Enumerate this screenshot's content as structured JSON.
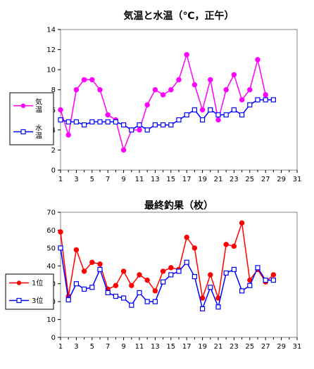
{
  "chart_data": [
    {
      "type": "line",
      "title": "気温と水温（℃，正午）",
      "xlabel": "",
      "ylabel": "",
      "xlim": [
        1,
        31
      ],
      "ylim": [
        0,
        14
      ],
      "x_ticks": [
        1,
        3,
        5,
        7,
        9,
        11,
        13,
        15,
        17,
        19,
        21,
        23,
        25,
        27,
        29,
        31
      ],
      "y_ticks": [
        0,
        2,
        4,
        6,
        8,
        10,
        12,
        14
      ],
      "grid": false,
      "legend_position": "left",
      "series": [
        {
          "name": "気温",
          "color": "#ff00ff",
          "marker": "circle-filled",
          "x": [
            1,
            2,
            3,
            4,
            5,
            6,
            7,
            8,
            9,
            10,
            11,
            12,
            13,
            14,
            15,
            16,
            17,
            18,
            19,
            20,
            21,
            22,
            23,
            24,
            25,
            26,
            27
          ],
          "y": [
            6,
            3.5,
            8,
            9,
            9,
            8,
            5.5,
            5,
            2,
            4,
            4,
            6.5,
            8,
            7.5,
            8,
            9,
            11.5,
            8.5,
            6,
            9,
            5,
            8,
            9.5,
            7,
            8,
            11,
            7.5
          ]
        },
        {
          "name": "水温",
          "color": "#0000ff",
          "marker": "square-open",
          "x": [
            1,
            2,
            3,
            4,
            5,
            6,
            7,
            8,
            9,
            10,
            11,
            12,
            13,
            14,
            15,
            16,
            17,
            18,
            19,
            20,
            21,
            22,
            23,
            24,
            25,
            26,
            27,
            28
          ],
          "y": [
            5,
            4.8,
            4.8,
            4.5,
            4.8,
            4.8,
            4.8,
            4.8,
            4.5,
            4,
            4.5,
            4,
            4.5,
            4.5,
            4.5,
            5,
            5.5,
            6,
            5,
            6,
            5.5,
            5.5,
            6,
            5.5,
            6.5,
            7,
            7,
            7
          ]
        }
      ]
    },
    {
      "type": "line",
      "title": "最終釣果（枚）",
      "xlabel": "",
      "ylabel": "",
      "xlim": [
        1,
        31
      ],
      "ylim": [
        0,
        70
      ],
      "x_ticks": [
        1,
        3,
        5,
        7,
        9,
        11,
        13,
        15,
        17,
        19,
        21,
        23,
        25,
        27,
        29,
        31
      ],
      "y_ticks": [
        0,
        10,
        20,
        30,
        40,
        50,
        60,
        70
      ],
      "grid": false,
      "legend_position": "left",
      "series": [
        {
          "name": "1位",
          "color": "#ff0000",
          "marker": "circle-filled",
          "x": [
            1,
            2,
            3,
            4,
            5,
            6,
            7,
            8,
            9,
            10,
            11,
            12,
            13,
            14,
            15,
            16,
            17,
            18,
            19,
            20,
            21,
            22,
            23,
            24,
            25,
            26,
            27,
            28
          ],
          "y": [
            59,
            23,
            49,
            37,
            42,
            41,
            27,
            29,
            37,
            29,
            35,
            32,
            26,
            37,
            39,
            38,
            56,
            50,
            22,
            35,
            22,
            52,
            51,
            64,
            32,
            38,
            31,
            35
          ]
        },
        {
          "name": "3位",
          "color": "#0000ff",
          "marker": "square-open",
          "x": [
            1,
            2,
            3,
            4,
            5,
            6,
            7,
            8,
            9,
            10,
            11,
            12,
            13,
            14,
            15,
            16,
            17,
            18,
            19,
            20,
            21,
            22,
            23,
            24,
            25,
            26,
            27,
            28
          ],
          "y": [
            50,
            21,
            30,
            27,
            28,
            38,
            25,
            23,
            22,
            18,
            25,
            20,
            20,
            31,
            35,
            37,
            42,
            34,
            16,
            28,
            17,
            36,
            38,
            26,
            29,
            39,
            32,
            32
          ]
        }
      ]
    }
  ]
}
